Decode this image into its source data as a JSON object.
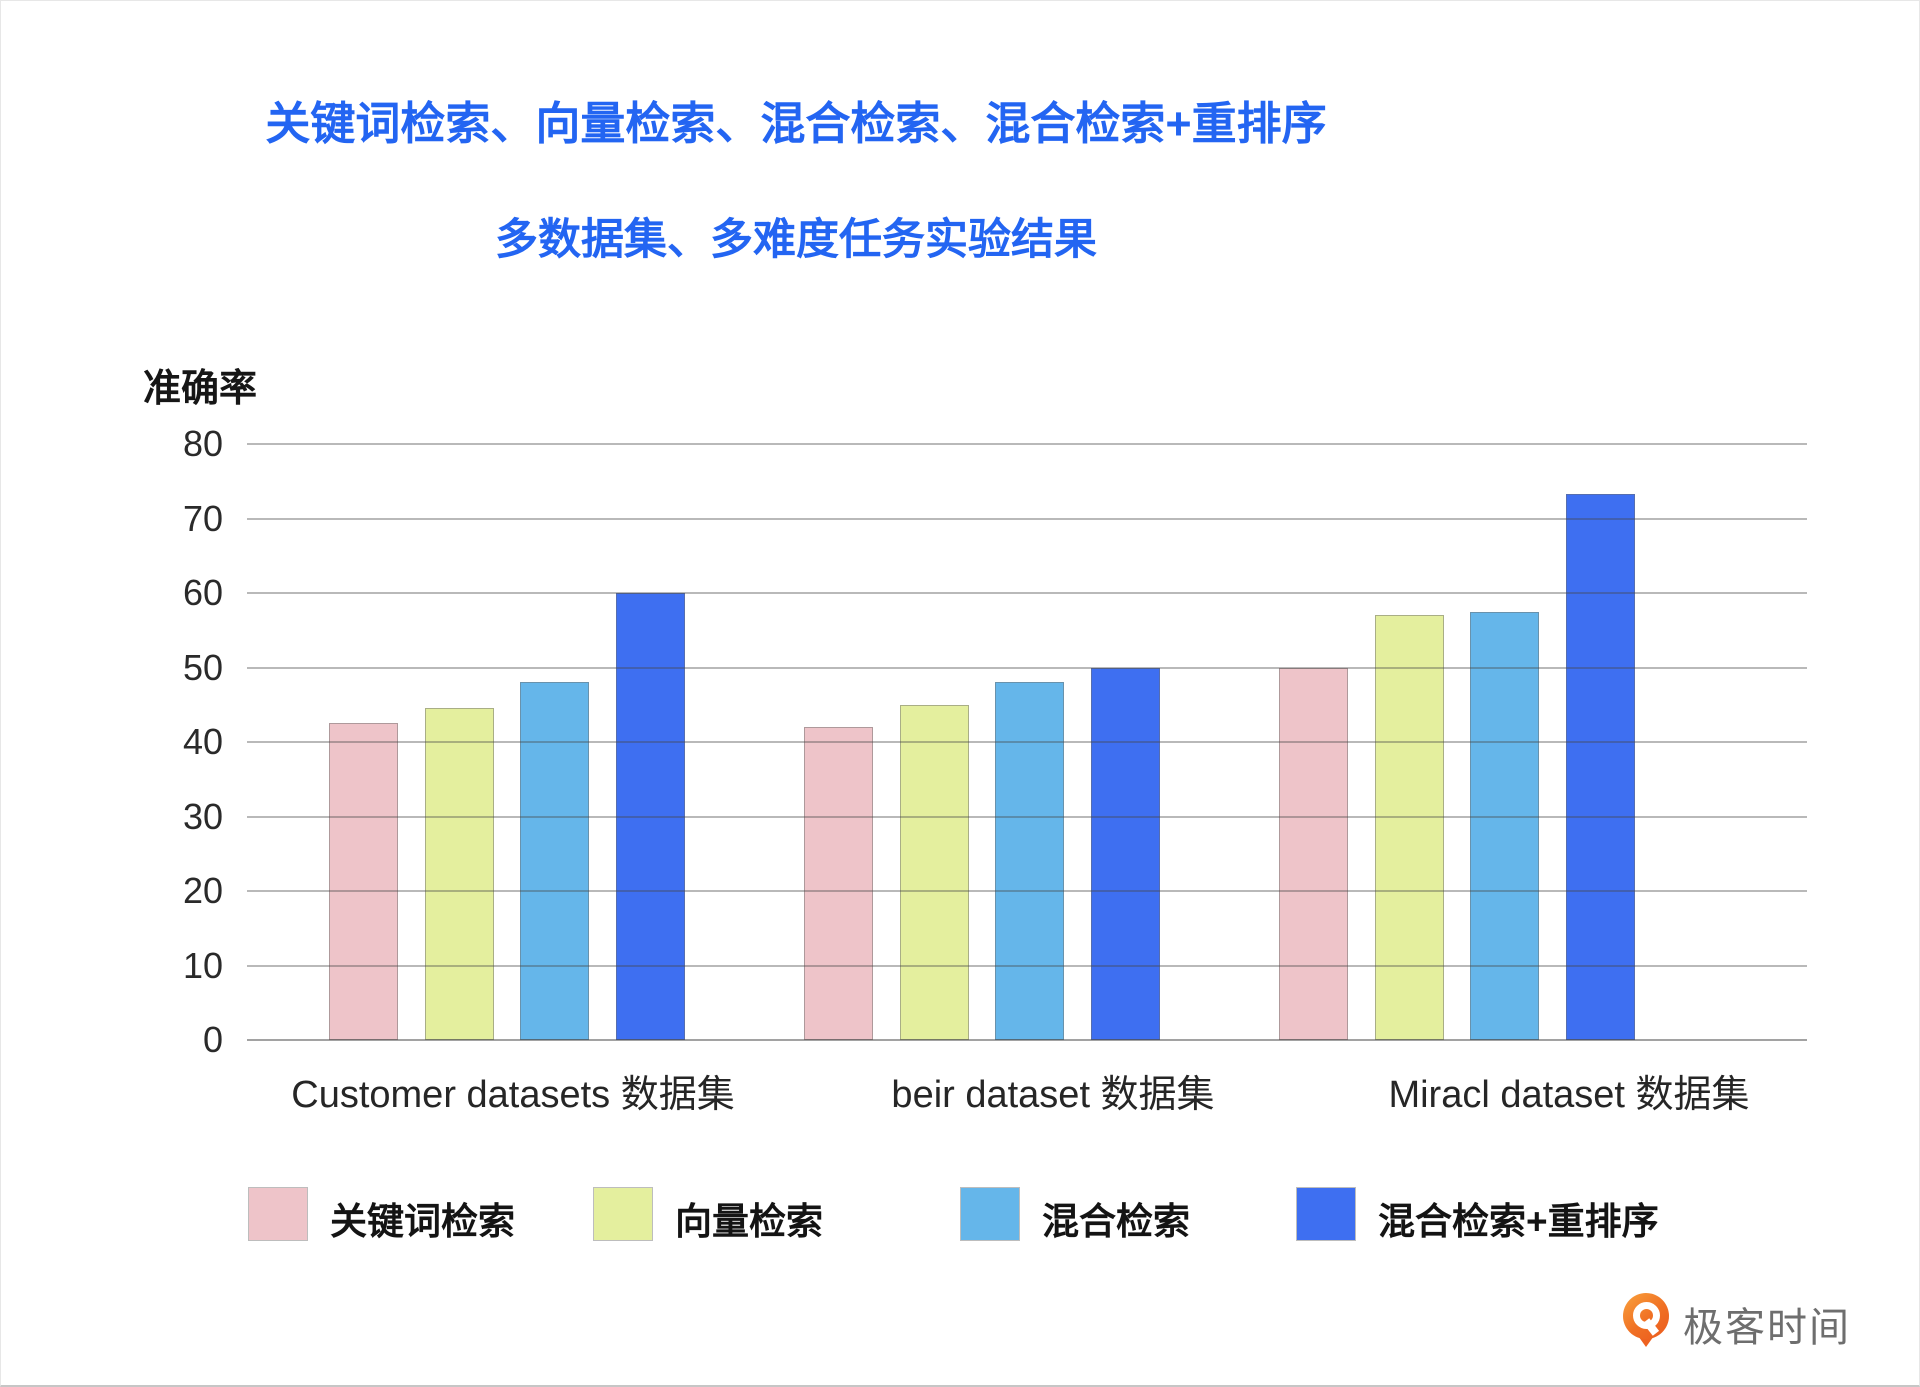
{
  "page": {
    "title_line1": "关键词检索、向量检索、混合检索、混合检索+重排序",
    "title_line2": "多数据集、多难度任务实验结果",
    "title_color": "#2365f2"
  },
  "chart_data": {
    "type": "bar",
    "title": "关键词检索、向量检索、混合检索、混合检索+重排序",
    "subtitle": "多数据集、多难度任务实验结果",
    "ylabel": "准确率",
    "xlabel": "",
    "categories": [
      "Customer datasets 数据集",
      "beir dataset 数据集",
      "Miracl dataset 数据集"
    ],
    "series": [
      {
        "name": "关键词检索",
        "color": "#eec4c9",
        "values": [
          42.5,
          42,
          50
        ]
      },
      {
        "name": "向量检索",
        "color": "#e4ef9e",
        "values": [
          44.5,
          45,
          57
        ]
      },
      {
        "name": "混合检索",
        "color": "#65b6ea",
        "values": [
          48,
          48,
          57.5
        ]
      },
      {
        "name": "混合检索+重排序",
        "color": "#3e6ff1",
        "values": [
          60,
          50,
          73.3
        ]
      }
    ],
    "ylim": [
      0,
      80
    ],
    "yticks": [
      0,
      10,
      20,
      30,
      40,
      50,
      60,
      70,
      80
    ],
    "grid": true,
    "legend_position": "bottom"
  },
  "logo": {
    "text": "极客时间",
    "icon": "geektime-pin-icon",
    "icon_color": "#f0691f",
    "text_color": "#6e6e6e"
  }
}
